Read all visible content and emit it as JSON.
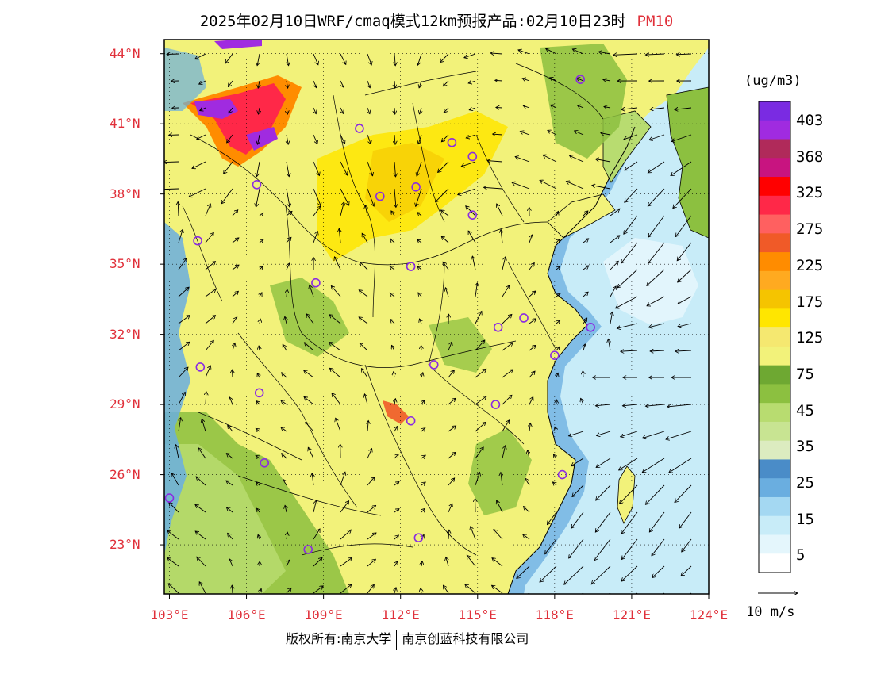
{
  "title": {
    "main": "2025年02月10日WRF/cmaq模式12km预报产品:02月10日23时",
    "species": "PM10"
  },
  "map": {
    "lat_labels": [
      "44°N",
      "41°N",
      "38°N",
      "35°N",
      "32°N",
      "29°N",
      "26°N",
      "23°N"
    ],
    "lon_labels": [
      "103°E",
      "106°E",
      "109°E",
      "112°E",
      "115°E",
      "118°E",
      "121°E",
      "124°E"
    ],
    "lat_values": [
      44,
      41,
      38,
      35,
      32,
      29,
      26,
      23
    ],
    "lon_values": [
      103,
      106,
      109,
      112,
      115,
      118,
      121,
      124
    ],
    "lat_range": [
      20.9,
      44.6
    ],
    "lon_range": [
      102.8,
      124.0
    ],
    "station_marker_color": "#8a2be2",
    "stations": [
      {
        "lon": 119.0,
        "lat": 42.9
      },
      {
        "lon": 110.4,
        "lat": 40.8
      },
      {
        "lon": 114.0,
        "lat": 40.2
      },
      {
        "lon": 114.8,
        "lat": 39.6
      },
      {
        "lon": 106.4,
        "lat": 38.4
      },
      {
        "lon": 111.2,
        "lat": 37.9
      },
      {
        "lon": 112.6,
        "lat": 38.3
      },
      {
        "lon": 114.8,
        "lat": 37.1
      },
      {
        "lon": 104.1,
        "lat": 36.0
      },
      {
        "lon": 112.4,
        "lat": 34.9
      },
      {
        "lon": 108.7,
        "lat": 34.2
      },
      {
        "lon": 116.8,
        "lat": 32.7
      },
      {
        "lon": 115.8,
        "lat": 32.3
      },
      {
        "lon": 119.4,
        "lat": 32.3
      },
      {
        "lon": 118.0,
        "lat": 31.1
      },
      {
        "lon": 104.2,
        "lat": 30.6
      },
      {
        "lon": 113.3,
        "lat": 30.7
      },
      {
        "lon": 106.5,
        "lat": 29.5
      },
      {
        "lon": 115.7,
        "lat": 29.0
      },
      {
        "lon": 112.4,
        "lat": 28.3
      },
      {
        "lon": 106.7,
        "lat": 26.5
      },
      {
        "lon": 118.3,
        "lat": 26.0
      },
      {
        "lon": 103.0,
        "lat": 25.0
      },
      {
        "lon": 108.4,
        "lat": 22.8
      },
      {
        "lon": 112.7,
        "lat": 23.3
      }
    ]
  },
  "colorbar": {
    "units": "(ug/m3)",
    "labels": [
      "403",
      "368",
      "325",
      "275",
      "225",
      "175",
      "125",
      "75",
      "45",
      "35",
      "25",
      "15",
      "5"
    ],
    "colors": [
      "#7a2be2",
      "#a02be0",
      "#b02a5a",
      "#c81480",
      "#ff0000",
      "#ff2848",
      "#ff6060",
      "#f05a28",
      "#ff8c00",
      "#ffaa20",
      "#f5c400",
      "#ffe600",
      "#f5e870",
      "#f2f27a",
      "#6ea832",
      "#8cc040",
      "#b8dc70",
      "#c8e492",
      "#dcecc0",
      "#4a8cc8",
      "#6aaee0",
      "#a4d8f2",
      "#c8ecf8",
      "#e4f6fc",
      "#ffffff"
    ]
  },
  "vector_ref": {
    "label": "10 m/s"
  },
  "copyright": {
    "left": "版权所有:南京大学",
    "right": "南京创蓝科技有限公司"
  }
}
